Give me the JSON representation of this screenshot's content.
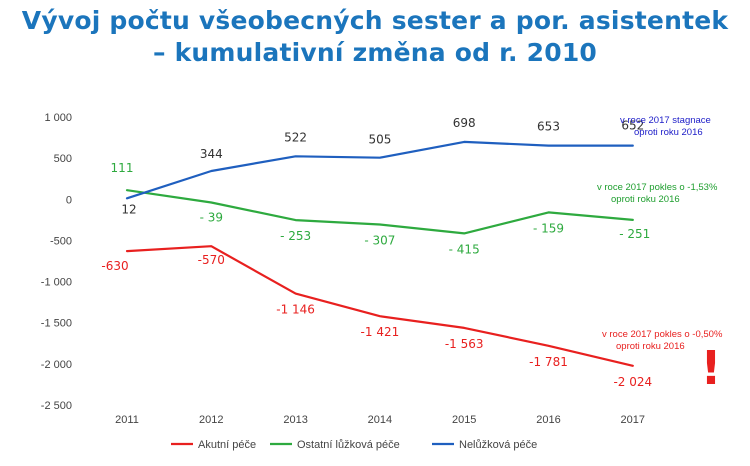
{
  "title": {
    "line1": "Vývoj počtu všeobecných sester a por. asistentek",
    "line2": "– kumulativní změna od r. 2010"
  },
  "chart_data": {
    "type": "line",
    "x": [
      "2011",
      "2012",
      "2013",
      "2014",
      "2015",
      "2016",
      "2017"
    ],
    "ylim": [
      -2500,
      1000
    ],
    "yticks": [
      1000,
      500,
      0,
      -500,
      -1000,
      -1500,
      -2000,
      -2500
    ],
    "ytick_labels": [
      "1 000",
      "500",
      "0",
      "-500",
      "-1 000",
      "-1 500",
      "-2 000",
      "-2 500"
    ],
    "grid": false,
    "legend_position": "bottom",
    "series": [
      {
        "name": "Akutní péče",
        "color": "#e8201f",
        "values": [
          -630,
          -570,
          -1146,
          -1421,
          -1563,
          -1781,
          -2024
        ],
        "labels": [
          "-630",
          "-570",
          "-1 146",
          "-1 421",
          "-1 563",
          "-1 781",
          "-2 024"
        ]
      },
      {
        "name": "Ostatní lůžková péče",
        "color": "#2eaa3f",
        "values": [
          111,
          -39,
          -253,
          -307,
          -415,
          -159,
          -251
        ],
        "labels": [
          "111",
          "- 39",
          "- 253",
          "- 307",
          "- 415",
          "- 159",
          "- 251"
        ]
      },
      {
        "name": "Nelůžková péče",
        "color": "#1f5fbf",
        "values": [
          12,
          344,
          522,
          505,
          698,
          653,
          652
        ],
        "labels": [
          "12",
          "344",
          "522",
          "505",
          "698",
          "653",
          "652"
        ]
      }
    ],
    "annotations": [
      {
        "series": "Nelůžková péče",
        "color": "#1c1cc8",
        "lines": [
          "v roce 2017 stagnace",
          "oproti roku 2016"
        ]
      },
      {
        "series": "Ostatní lůžková péče",
        "color": "#1e9e2e",
        "lines": [
          "v roce 2017 pokles o -1,53%",
          "oproti roku 2016"
        ]
      },
      {
        "series": "Akutní péče",
        "color": "#e8201f",
        "lines": [
          "v roce 2017 pokles o -0,50%",
          "oproti roku 2016"
        ]
      }
    ],
    "exclamation": "!"
  }
}
